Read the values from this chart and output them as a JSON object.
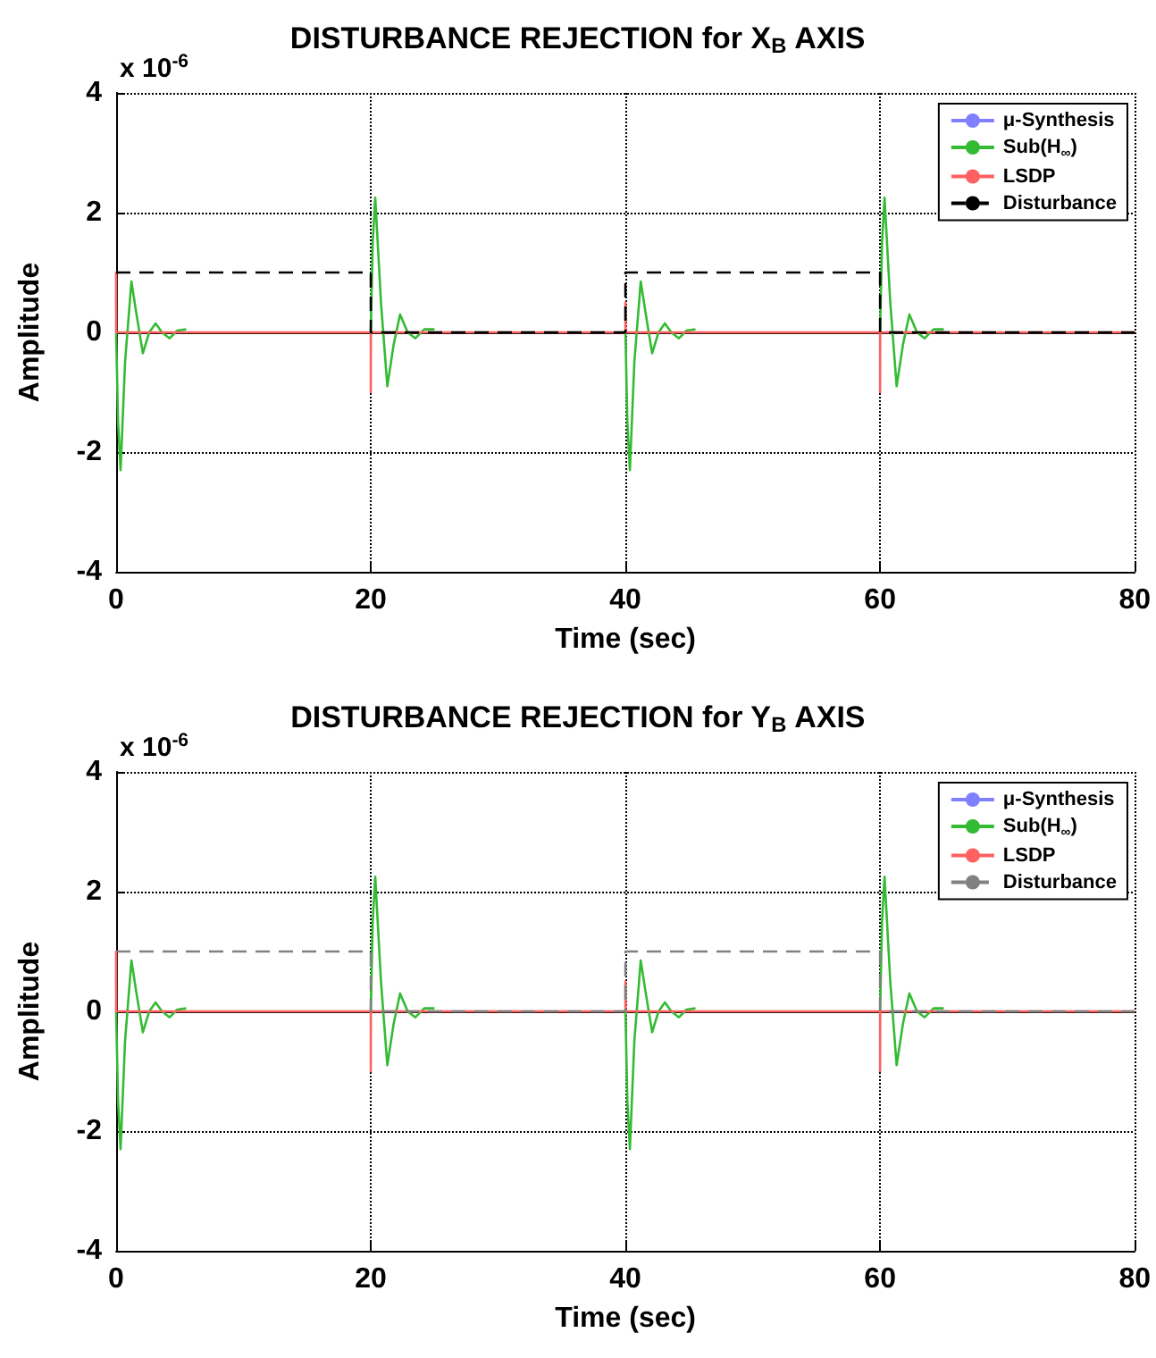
{
  "chart_data": [
    {
      "type": "line",
      "title": "DISTURBANCE REJECTION for X$_{B}$ AXIS",
      "xlabel": "Time (sec)",
      "ylabel": "Amplitude",
      "annotations": [
        "x 10$^{-6}$"
      ],
      "xlim": [
        0,
        80
      ],
      "xticks": [
        0,
        20,
        40,
        60,
        80
      ],
      "ylim": [
        -4,
        4
      ],
      "yticks": [
        -4,
        -2,
        0,
        2,
        4
      ],
      "grid": true,
      "legend": "top right",
      "marker": "none",
      "series": [
        {
          "name": "μ-Synthesis",
          "color": "#8080ff",
          "line_style": "solid"
        },
        {
          "name": "Sub(H$_{∞}$)",
          "color": "#33bb33",
          "line_style": "solid",
          "x": [
            0,
            0.15,
            0.35,
            0.7,
            1.2,
            1.6,
            2.1,
            2.6,
            3.1,
            3.6,
            4.2,
            4.8,
            5.5,
            5.6,
            20,
            20.15,
            20.35,
            20.8,
            21.3,
            21.8,
            22.3,
            22.9,
            23.5,
            24.2,
            25,
            25.1,
            40,
            40.15,
            40.35,
            40.7,
            41.2,
            41.6,
            42.1,
            42.6,
            43.1,
            43.6,
            44.2,
            44.8,
            45.5,
            45.6,
            60,
            60.15,
            60.35,
            60.8,
            61.3,
            61.8,
            62.3,
            62.9,
            63.5,
            64.2,
            65
          ],
          "values": [
            0,
            -1.5,
            -2.3,
            -0.5,
            0.85,
            0.3,
            -0.35,
            0,
            0.15,
            0,
            -0.1,
            0.03,
            0.05,
            null,
            0,
            1.5,
            2.25,
            0.5,
            -0.9,
            -0.2,
            0.3,
            0,
            -0.1,
            0.05,
            0.05,
            null,
            0,
            -1.5,
            -2.3,
            -0.5,
            0.85,
            0.3,
            -0.35,
            0,
            0.15,
            0,
            -0.1,
            0.03,
            0.05,
            null,
            0,
            1.5,
            2.25,
            0.5,
            -0.9,
            -0.2,
            0.3,
            0,
            -0.1,
            0.05,
            0.05
          ]
        },
        {
          "name": "LSDP",
          "color": "#ff6060",
          "line_style": "solid",
          "x": [
            0,
            0,
            0.01,
            20,
            20,
            20.01,
            40,
            40,
            40.01,
            60,
            60,
            60.01,
            80
          ],
          "values": [
            0,
            1,
            0,
            0,
            -1,
            0,
            0,
            0.5,
            0,
            0,
            -1,
            0,
            0
          ]
        },
        {
          "name": "Disturbance",
          "color": "#000000",
          "line_style": "dashed",
          "x": [
            0,
            20,
            20,
            40,
            40,
            60,
            60,
            80
          ],
          "values": [
            1,
            1,
            0,
            0,
            1,
            1,
            0,
            0
          ]
        }
      ]
    },
    {
      "type": "line",
      "title": "DISTURBANCE REJECTION for Y$_{B}$ AXIS",
      "xlabel": "Time (sec)",
      "ylabel": "Amplitude",
      "annotations": [
        "x 10$^{-6}$"
      ],
      "xlim": [
        0,
        80
      ],
      "xticks": [
        0,
        20,
        40,
        60,
        80
      ],
      "ylim": [
        -4,
        4
      ],
      "yticks": [
        -4,
        -2,
        0,
        2,
        4
      ],
      "grid": true,
      "legend": "top right",
      "marker": "none",
      "series": [
        {
          "name": "μ-Synthesis",
          "color": "#8080ff",
          "line_style": "solid"
        },
        {
          "name": "Sub(H$_{∞}$)",
          "color": "#33bb33",
          "line_style": "solid",
          "x": [
            0,
            0.15,
            0.35,
            0.7,
            1.2,
            1.6,
            2.1,
            2.6,
            3.1,
            3.6,
            4.2,
            4.8,
            5.5,
            5.6,
            20,
            20.15,
            20.35,
            20.8,
            21.3,
            21.8,
            22.3,
            22.9,
            23.5,
            24.2,
            25,
            25.1,
            40,
            40.15,
            40.35,
            40.7,
            41.2,
            41.6,
            42.1,
            42.6,
            43.1,
            43.6,
            44.2,
            44.8,
            45.5,
            45.6,
            60,
            60.15,
            60.35,
            60.8,
            61.3,
            61.8,
            62.3,
            62.9,
            63.5,
            64.2,
            65
          ],
          "values": [
            0,
            -1.5,
            -2.3,
            -0.5,
            0.85,
            0.3,
            -0.35,
            0,
            0.15,
            0,
            -0.1,
            0.03,
            0.05,
            null,
            0,
            1.5,
            2.25,
            0.5,
            -0.9,
            -0.2,
            0.3,
            0,
            -0.1,
            0.05,
            0.05,
            null,
            0,
            -1.5,
            -2.3,
            -0.5,
            0.85,
            0.3,
            -0.35,
            0,
            0.15,
            0,
            -0.1,
            0.03,
            0.05,
            null,
            0,
            1.5,
            2.25,
            0.5,
            -0.9,
            -0.2,
            0.3,
            0,
            -0.1,
            0.05,
            0.05
          ]
        },
        {
          "name": "LSDP",
          "color": "#ff6060",
          "line_style": "solid",
          "x": [
            0,
            0,
            0.01,
            20,
            20,
            20.01,
            40,
            40,
            40.01,
            60,
            60,
            60.01,
            80
          ],
          "values": [
            0,
            1,
            0,
            0,
            -1,
            0,
            0,
            0.5,
            0,
            0,
            -1,
            0,
            0
          ]
        },
        {
          "name": "Disturbance",
          "color": "#808080",
          "line_style": "dashed",
          "x": [
            0,
            20,
            20,
            40,
            40,
            60,
            60,
            80
          ],
          "values": [
            1,
            1,
            0,
            0,
            1,
            1,
            0,
            0
          ]
        }
      ]
    }
  ]
}
